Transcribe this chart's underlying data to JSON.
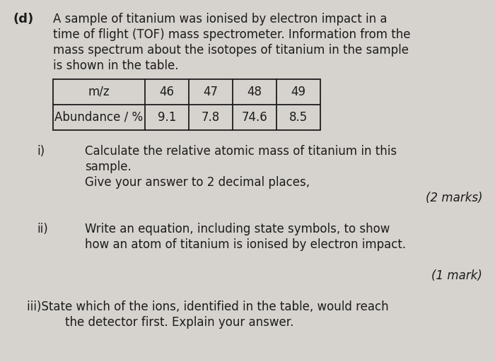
{
  "background_color": "#d6d3ce",
  "label_d": "(d)",
  "intro_lines": [
    "A sample of titanium was ionised by electron impact in a",
    "time of flight (TOF) mass spectrometer. Information from the",
    "mass spectrum about the isotopes of titanium in the sample",
    "is shown in the table."
  ],
  "table_headers": [
    "m/z",
    "46",
    "47",
    "48",
    "49"
  ],
  "table_row2_label": "Abundance / %",
  "table_row2_values": [
    "9.1",
    "7.8",
    "74.6",
    "8.5"
  ],
  "part_i_label": "i)",
  "part_i_lines": [
    "Calculate the relative atomic mass of titanium in this",
    "sample.",
    "Give your answer to 2 decimal places,"
  ],
  "part_i_marks": "(2 marks)",
  "part_ii_label": "ii)",
  "part_ii_lines": [
    "Write an equation, including state symbols, to show",
    "how an atom of titanium is ionised by electron impact."
  ],
  "part_ii_marks": "(1 mark)",
  "part_iii_text": "iii)State which of the ions, identified in the table, would reach",
  "part_iii_text2": "the detector first. Explain your answer.",
  "fs_bold": 13,
  "fs_main": 12,
  "fs_table": 12,
  "text_color": "#1c1c1c"
}
